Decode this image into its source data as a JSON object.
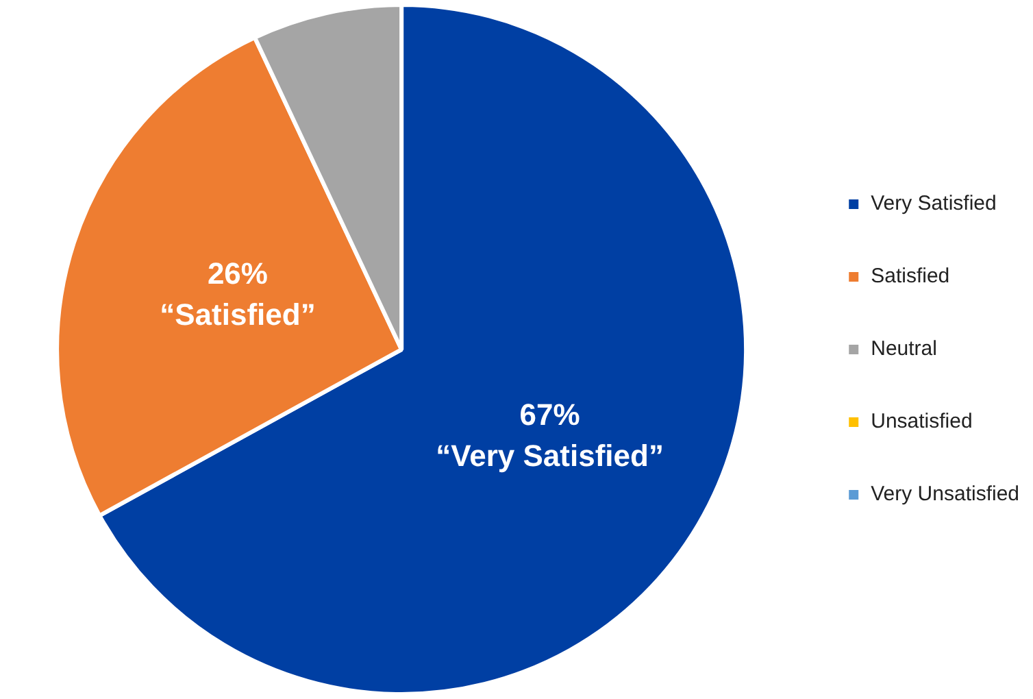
{
  "chart_data": {
    "type": "pie",
    "categories": [
      "Very Satisfied",
      "Satisfied",
      "Neutral",
      "Unsatisfied",
      "Very Unsatisfied"
    ],
    "values": [
      67,
      26,
      7,
      0,
      0
    ],
    "colors": [
      "#003fa3",
      "#ee7d31",
      "#a5a5a5",
      "#ffc000",
      "#5b9bd5"
    ],
    "value_labels": [
      "67%\n“Very Satisfied”",
      "26%\n“Satisfied”",
      null,
      null,
      null
    ],
    "legend": "right"
  }
}
